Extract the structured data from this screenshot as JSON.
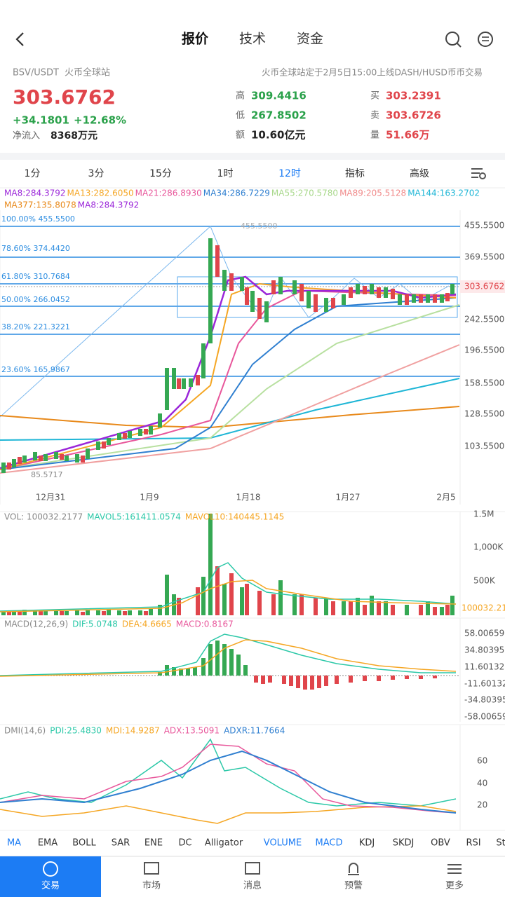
{
  "header": {
    "tabs": [
      "报价",
      "技术",
      "资金"
    ]
  },
  "ticker": {
    "pair": "BSV/USDT",
    "exchange": "火币全球站",
    "notice": "火币全球站定于2月5日15:00上线DASH/HUSD币币交易",
    "price": "303.6762",
    "change": "+34.1801",
    "change_pct": "+12.68%",
    "net_inflow_label": "净流入",
    "net_inflow": "8368万元"
  },
  "stats": [
    {
      "label": "高",
      "value": "309.4416"
    },
    {
      "label": "低",
      "value": "267.8502"
    },
    {
      "label": "额",
      "value": "10.60亿元"
    },
    {
      "label": "买",
      "value": "303.2391"
    },
    {
      "label": "卖",
      "value": "303.6726"
    },
    {
      "label": "量",
      "value": "51.66万"
    }
  ],
  "intervals": [
    "1分",
    "3分",
    "15分",
    "1时",
    "12时",
    "指标",
    "高级"
  ],
  "ma_legend": {
    "row1": [
      {
        "text": "MA8:284.3792",
        "color": "#9b27d9"
      },
      {
        "text": "MA13:282.6050",
        "color": "#f5a623"
      },
      {
        "text": "MA21:286.8930",
        "color": "#e8579b"
      },
      {
        "text": "MA34:286.7229",
        "color": "#2f7fd0"
      },
      {
        "text": "MA55:270.5780",
        "color": "#a8d88b"
      },
      {
        "text": "MA89:205.5128",
        "color": "#f08a8a"
      },
      {
        "text": "MA144:163.2702",
        "color": "#1fb6d6"
      }
    ],
    "row2": [
      {
        "text": "MA377:135.8078",
        "color": "#e8891a"
      },
      {
        "text": "MA8:284.3792",
        "color": "#9b27d9"
      }
    ]
  },
  "price_axis": [
    "455.5500",
    "369.5500",
    "303.6762",
    "242.5500",
    "196.5500",
    "158.5500",
    "128.5500",
    "103.5500"
  ],
  "fib_labels": [
    "100.00% 455.5500",
    "78.60% 374.4420",
    "61.80% 310.7684",
    "50.00% 266.0452",
    "38.20% 221.3221",
    "23.60% 165.9867"
  ],
  "chart_notes": {
    "high": "455.5500",
    "low": "85.5717"
  },
  "dates": [
    "12月31",
    "1月9",
    "1月18",
    "1月27",
    "2月5"
  ],
  "volume": {
    "legend": [
      {
        "text": "VOL: 100032.2177",
        "color": "#888"
      },
      {
        "text": "MAVOL5:161411.0574",
        "color": "#2cc8a8"
      },
      {
        "text": "MAVOL10:140445.1145",
        "color": "#f5a623"
      }
    ],
    "axis": [
      "1.5M",
      "1,000K",
      "500K"
    ],
    "current": "100032.218"
  },
  "macd": {
    "legend": [
      {
        "text": "MACD(12,26,9)",
        "color": "#888"
      },
      {
        "text": "DIF:5.0748",
        "color": "#2cc8a8"
      },
      {
        "text": "DEA:4.6665",
        "color": "#f5a623"
      },
      {
        "text": "MACD:0.8167",
        "color": "#e8579b"
      }
    ],
    "axis": [
      "58.00659",
      "34.80395",
      "11.60132",
      "-11.60132",
      "-34.80395",
      "-58.00659"
    ]
  },
  "dmi": {
    "legend": [
      {
        "text": "DMI(14,6)",
        "color": "#888"
      },
      {
        "text": "PDI:25.4830",
        "color": "#2cc8a8"
      },
      {
        "text": "MDI:14.9287",
        "color": "#f5a623"
      },
      {
        "text": "ADX:13.5091",
        "color": "#e8579b"
      },
      {
        "text": "ADXR:11.7664",
        "color": "#2f7fd0"
      }
    ],
    "axis": [
      "60",
      "40",
      "20"
    ]
  },
  "indicators": [
    "MA",
    "EMA",
    "BOLL",
    "SAR",
    "ENE",
    "DC",
    "Alligator",
    "VOLUME",
    "MACD",
    "KDJ",
    "SKDJ",
    "OBV",
    "RSI",
    "St"
  ],
  "nav": [
    "交易",
    "市场",
    "消息",
    "预警",
    "更多"
  ]
}
